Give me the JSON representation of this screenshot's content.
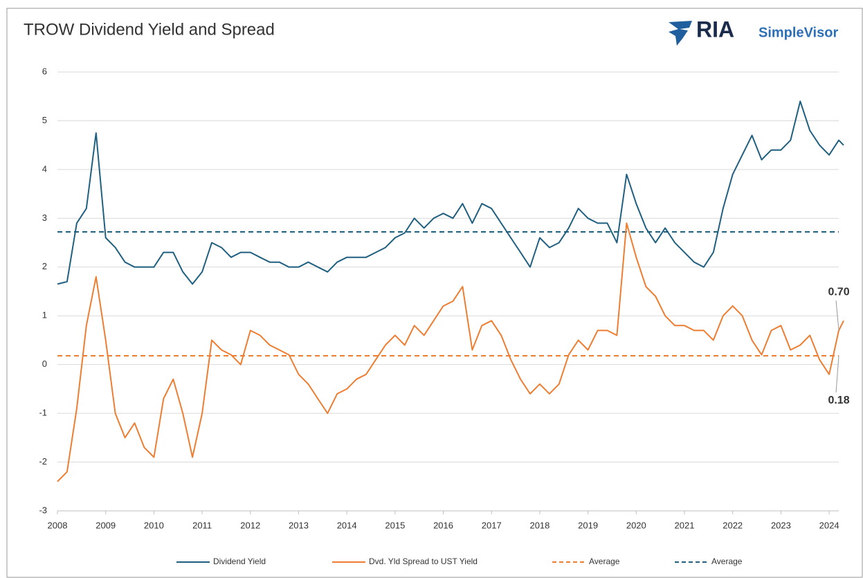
{
  "chart_data": {
    "type": "line",
    "title": "TROW Dividend Yield and Spread",
    "logo": {
      "brand": "RIA",
      "product": "SimpleVisor"
    },
    "x": [
      2008.0,
      2008.2,
      2008.4,
      2008.6,
      2008.8,
      2009.0,
      2009.2,
      2009.4,
      2009.6,
      2009.8,
      2010.0,
      2010.2,
      2010.4,
      2010.6,
      2010.8,
      2011.0,
      2011.2,
      2011.4,
      2011.6,
      2011.8,
      2012.0,
      2012.2,
      2012.4,
      2012.6,
      2012.8,
      2013.0,
      2013.2,
      2013.4,
      2013.6,
      2013.8,
      2014.0,
      2014.2,
      2014.4,
      2014.6,
      2014.8,
      2015.0,
      2015.2,
      2015.4,
      2015.6,
      2015.8,
      2016.0,
      2016.2,
      2016.4,
      2016.6,
      2016.8,
      2017.0,
      2017.2,
      2017.4,
      2017.6,
      2017.8,
      2018.0,
      2018.2,
      2018.4,
      2018.6,
      2018.8,
      2019.0,
      2019.2,
      2019.4,
      2019.6,
      2019.8,
      2020.0,
      2020.2,
      2020.4,
      2020.6,
      2020.8,
      2021.0,
      2021.2,
      2021.4,
      2021.6,
      2021.8,
      2022.0,
      2022.2,
      2022.4,
      2022.6,
      2022.8,
      2023.0,
      2023.2,
      2023.4,
      2023.6,
      2023.8,
      2024.0,
      2024.2,
      2024.3
    ],
    "series": [
      {
        "name": "Dividend Yield",
        "color": "#1f5f80",
        "values": [
          1.65,
          1.7,
          2.9,
          3.2,
          4.75,
          2.6,
          2.4,
          2.1,
          2.0,
          2.0,
          2.0,
          2.3,
          2.3,
          1.9,
          1.65,
          1.9,
          2.5,
          2.4,
          2.2,
          2.3,
          2.3,
          2.2,
          2.1,
          2.1,
          2.0,
          2.0,
          2.1,
          2.0,
          1.9,
          2.1,
          2.2,
          2.2,
          2.2,
          2.3,
          2.4,
          2.6,
          2.7,
          3.0,
          2.8,
          3.0,
          3.1,
          3.0,
          3.3,
          2.9,
          3.3,
          3.2,
          2.9,
          2.6,
          2.3,
          2.0,
          2.6,
          2.4,
          2.5,
          2.8,
          3.2,
          3.0,
          2.9,
          2.9,
          2.5,
          3.9,
          3.3,
          2.8,
          2.5,
          2.8,
          2.5,
          2.3,
          2.1,
          2.0,
          2.3,
          3.2,
          3.9,
          4.3,
          4.7,
          4.2,
          4.4,
          4.4,
          4.6,
          5.4,
          4.8,
          4.5,
          4.3,
          4.6,
          4.5
        ]
      },
      {
        "name": "Dvd. Yld Spread to UST Yield",
        "color": "#ed7d31",
        "values": [
          -2.4,
          -2.2,
          -0.9,
          0.8,
          1.8,
          0.5,
          -1.0,
          -1.5,
          -1.2,
          -1.7,
          -1.9,
          -0.7,
          -0.3,
          -1.0,
          -1.9,
          -1.0,
          0.5,
          0.3,
          0.2,
          0.0,
          0.7,
          0.6,
          0.4,
          0.3,
          0.2,
          -0.2,
          -0.4,
          -0.7,
          -1.0,
          -0.6,
          -0.5,
          -0.3,
          -0.2,
          0.1,
          0.4,
          0.6,
          0.4,
          0.8,
          0.6,
          0.9,
          1.2,
          1.3,
          1.6,
          0.3,
          0.8,
          0.9,
          0.6,
          0.1,
          -0.3,
          -0.6,
          -0.4,
          -0.6,
          -0.4,
          0.2,
          0.5,
          0.3,
          0.7,
          0.7,
          0.6,
          2.9,
          2.2,
          1.6,
          1.4,
          1.0,
          0.8,
          0.8,
          0.7,
          0.7,
          0.5,
          1.0,
          1.2,
          1.0,
          0.5,
          0.2,
          0.7,
          0.8,
          0.3,
          0.4,
          0.6,
          0.1,
          -0.2,
          0.7,
          0.9
        ]
      }
    ],
    "averages": [
      {
        "name": "Average",
        "color": "#ed7d31",
        "value": 0.18
      },
      {
        "name": "Average",
        "color": "#1f5f80",
        "value": 2.72
      }
    ],
    "annotations": [
      {
        "label": "0.70",
        "x": 2024.2,
        "y": 0.7
      },
      {
        "label": "0.18",
        "x": 2024.2,
        "y": 0.18
      }
    ],
    "xlim": [
      2008,
      2024.3
    ],
    "xticks": [
      2008,
      2009,
      2010,
      2011,
      2012,
      2013,
      2014,
      2015,
      2016,
      2017,
      2018,
      2019,
      2020,
      2021,
      2022,
      2023,
      2024
    ],
    "ylim": [
      -3,
      6
    ],
    "yticks": [
      -3,
      -2,
      -1,
      0,
      1,
      2,
      3,
      4,
      5,
      6
    ],
    "grid": true
  }
}
